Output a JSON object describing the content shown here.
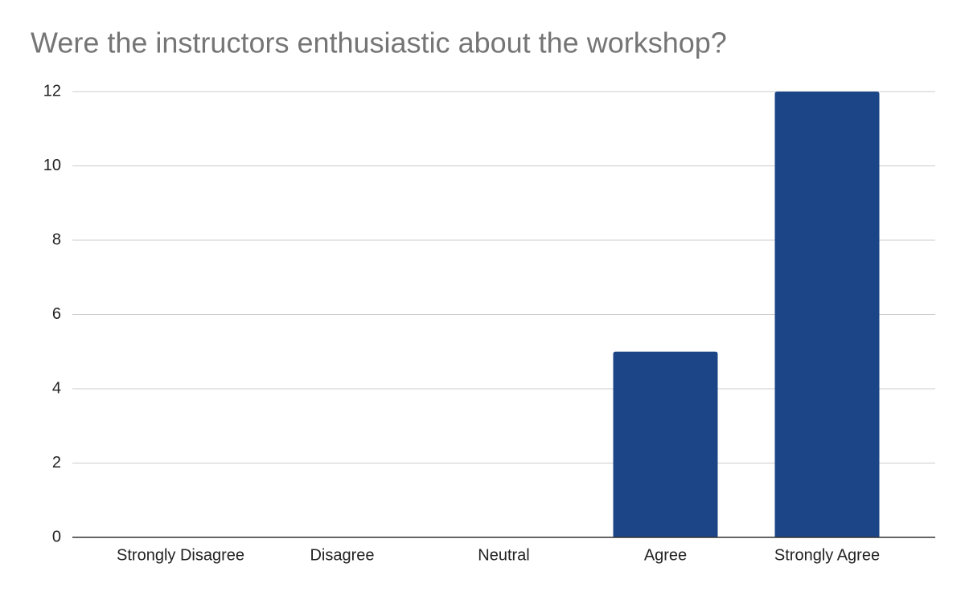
{
  "chart_data": {
    "type": "bar",
    "title": "Were the instructors enthusiastic about the workshop?",
    "categories": [
      "Strongly Disagree",
      "Disagree",
      "Neutral",
      "Agree",
      "Strongly Agree"
    ],
    "values": [
      0,
      0,
      0,
      5,
      12
    ],
    "color": "#1c4587",
    "ylim": [
      0,
      12
    ],
    "yticks": [
      0,
      2,
      4,
      6,
      8,
      10,
      12
    ],
    "grid": true
  }
}
